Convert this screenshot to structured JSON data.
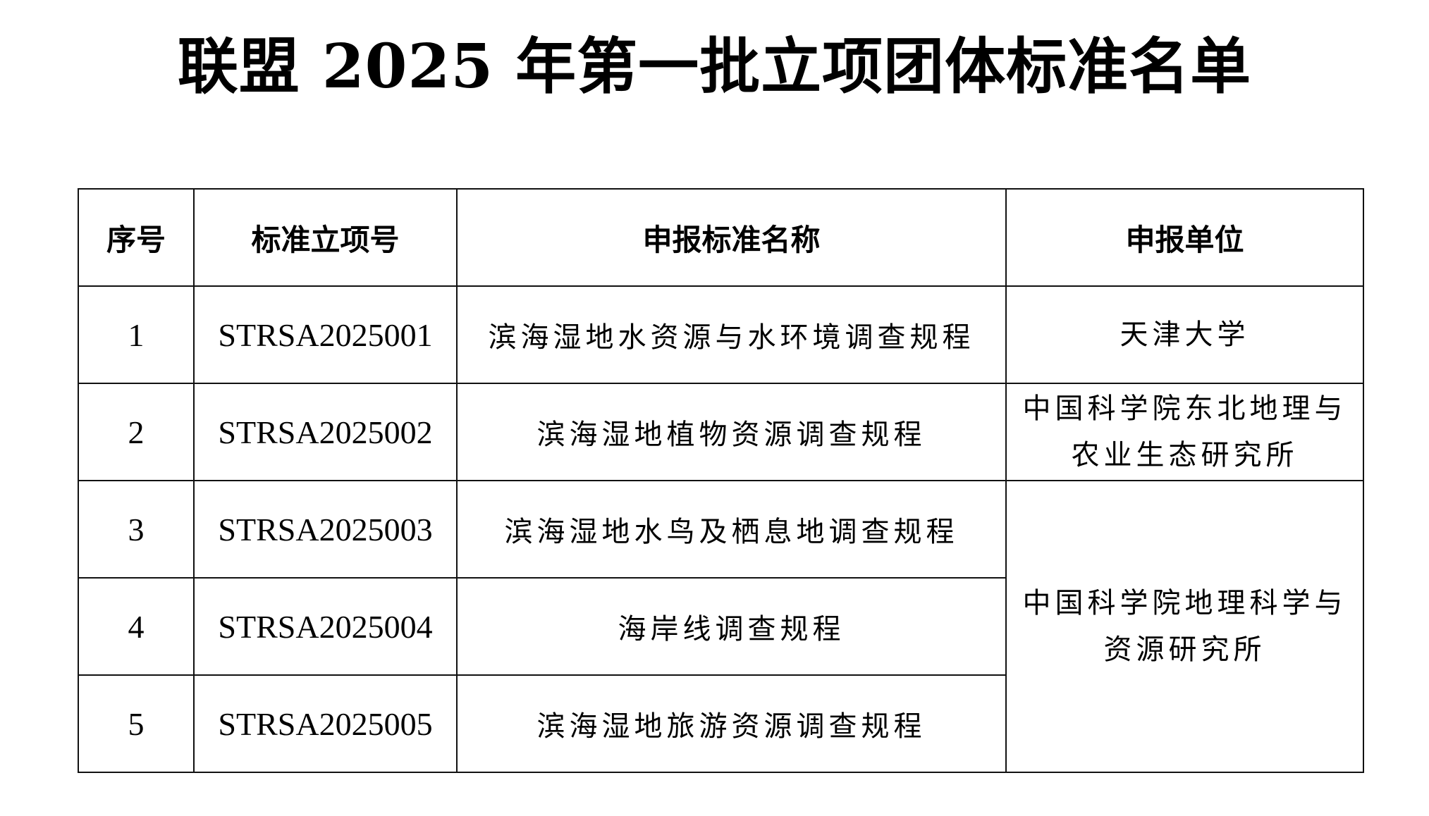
{
  "title": "联盟 2025 年第一批立项团体标准名单",
  "table": {
    "headers": [
      "序号",
      "标准立项号",
      "申报标准名称",
      "申报单位"
    ],
    "rows": [
      {
        "no": "1",
        "code": "STRSA2025001",
        "name": "滨海湿地水资源与水环境调查规程",
        "unit": "天津大学"
      },
      {
        "no": "2",
        "code": "STRSA2025002",
        "name": "滨海湿地植物资源调查规程",
        "unit": "中国科学院东北地理与农业生态研究所"
      },
      {
        "no": "3",
        "code": "STRSA2025003",
        "name": "滨海湿地水鸟及栖息地调查规程",
        "unit": "中国科学院地理科学与资源研究所"
      },
      {
        "no": "4",
        "code": "STRSA2025004",
        "name": "海岸线调查规程"
      },
      {
        "no": "5",
        "code": "STRSA2025005",
        "name": "滨海湿地旅游资源调查规程"
      }
    ]
  }
}
